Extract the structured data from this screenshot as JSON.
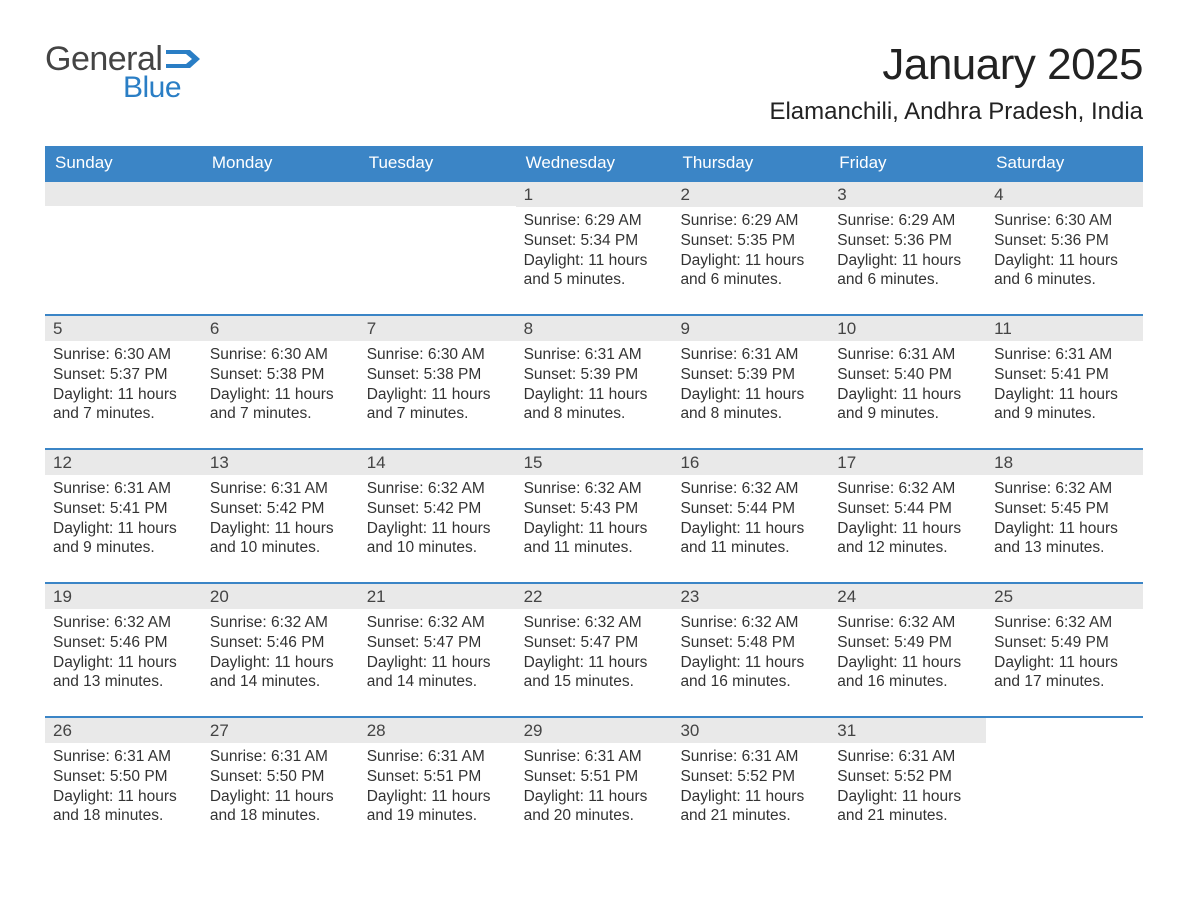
{
  "logo": {
    "word1": "General",
    "word2": "Blue",
    "word1_color": "#444444",
    "word2_color": "#2a7ec5",
    "flag_color": "#2a7ec5"
  },
  "title": "January 2025",
  "location": "Elamanchili, Andhra Pradesh, India",
  "header_bg": "#3b85c6",
  "header_text_color": "#ffffff",
  "daynum_bg": "#e9e9e9",
  "week_border_color": "#3b85c6",
  "daynames": [
    "Sunday",
    "Monday",
    "Tuesday",
    "Wednesday",
    "Thursday",
    "Friday",
    "Saturday"
  ],
  "weeks": [
    [
      {
        "blank": true
      },
      {
        "blank": true
      },
      {
        "blank": true
      },
      {
        "day": "1",
        "sunrise": "Sunrise: 6:29 AM",
        "sunset": "Sunset: 5:34 PM",
        "daylight1": "Daylight: 11 hours",
        "daylight2": "and 5 minutes."
      },
      {
        "day": "2",
        "sunrise": "Sunrise: 6:29 AM",
        "sunset": "Sunset: 5:35 PM",
        "daylight1": "Daylight: 11 hours",
        "daylight2": "and 6 minutes."
      },
      {
        "day": "3",
        "sunrise": "Sunrise: 6:29 AM",
        "sunset": "Sunset: 5:36 PM",
        "daylight1": "Daylight: 11 hours",
        "daylight2": "and 6 minutes."
      },
      {
        "day": "4",
        "sunrise": "Sunrise: 6:30 AM",
        "sunset": "Sunset: 5:36 PM",
        "daylight1": "Daylight: 11 hours",
        "daylight2": "and 6 minutes."
      }
    ],
    [
      {
        "day": "5",
        "sunrise": "Sunrise: 6:30 AM",
        "sunset": "Sunset: 5:37 PM",
        "daylight1": "Daylight: 11 hours",
        "daylight2": "and 7 minutes."
      },
      {
        "day": "6",
        "sunrise": "Sunrise: 6:30 AM",
        "sunset": "Sunset: 5:38 PM",
        "daylight1": "Daylight: 11 hours",
        "daylight2": "and 7 minutes."
      },
      {
        "day": "7",
        "sunrise": "Sunrise: 6:30 AM",
        "sunset": "Sunset: 5:38 PM",
        "daylight1": "Daylight: 11 hours",
        "daylight2": "and 7 minutes."
      },
      {
        "day": "8",
        "sunrise": "Sunrise: 6:31 AM",
        "sunset": "Sunset: 5:39 PM",
        "daylight1": "Daylight: 11 hours",
        "daylight2": "and 8 minutes."
      },
      {
        "day": "9",
        "sunrise": "Sunrise: 6:31 AM",
        "sunset": "Sunset: 5:39 PM",
        "daylight1": "Daylight: 11 hours",
        "daylight2": "and 8 minutes."
      },
      {
        "day": "10",
        "sunrise": "Sunrise: 6:31 AM",
        "sunset": "Sunset: 5:40 PM",
        "daylight1": "Daylight: 11 hours",
        "daylight2": "and 9 minutes."
      },
      {
        "day": "11",
        "sunrise": "Sunrise: 6:31 AM",
        "sunset": "Sunset: 5:41 PM",
        "daylight1": "Daylight: 11 hours",
        "daylight2": "and 9 minutes."
      }
    ],
    [
      {
        "day": "12",
        "sunrise": "Sunrise: 6:31 AM",
        "sunset": "Sunset: 5:41 PM",
        "daylight1": "Daylight: 11 hours",
        "daylight2": "and 9 minutes."
      },
      {
        "day": "13",
        "sunrise": "Sunrise: 6:31 AM",
        "sunset": "Sunset: 5:42 PM",
        "daylight1": "Daylight: 11 hours",
        "daylight2": "and 10 minutes."
      },
      {
        "day": "14",
        "sunrise": "Sunrise: 6:32 AM",
        "sunset": "Sunset: 5:42 PM",
        "daylight1": "Daylight: 11 hours",
        "daylight2": "and 10 minutes."
      },
      {
        "day": "15",
        "sunrise": "Sunrise: 6:32 AM",
        "sunset": "Sunset: 5:43 PM",
        "daylight1": "Daylight: 11 hours",
        "daylight2": "and 11 minutes."
      },
      {
        "day": "16",
        "sunrise": "Sunrise: 6:32 AM",
        "sunset": "Sunset: 5:44 PM",
        "daylight1": "Daylight: 11 hours",
        "daylight2": "and 11 minutes."
      },
      {
        "day": "17",
        "sunrise": "Sunrise: 6:32 AM",
        "sunset": "Sunset: 5:44 PM",
        "daylight1": "Daylight: 11 hours",
        "daylight2": "and 12 minutes."
      },
      {
        "day": "18",
        "sunrise": "Sunrise: 6:32 AM",
        "sunset": "Sunset: 5:45 PM",
        "daylight1": "Daylight: 11 hours",
        "daylight2": "and 13 minutes."
      }
    ],
    [
      {
        "day": "19",
        "sunrise": "Sunrise: 6:32 AM",
        "sunset": "Sunset: 5:46 PM",
        "daylight1": "Daylight: 11 hours",
        "daylight2": "and 13 minutes."
      },
      {
        "day": "20",
        "sunrise": "Sunrise: 6:32 AM",
        "sunset": "Sunset: 5:46 PM",
        "daylight1": "Daylight: 11 hours",
        "daylight2": "and 14 minutes."
      },
      {
        "day": "21",
        "sunrise": "Sunrise: 6:32 AM",
        "sunset": "Sunset: 5:47 PM",
        "daylight1": "Daylight: 11 hours",
        "daylight2": "and 14 minutes."
      },
      {
        "day": "22",
        "sunrise": "Sunrise: 6:32 AM",
        "sunset": "Sunset: 5:47 PM",
        "daylight1": "Daylight: 11 hours",
        "daylight2": "and 15 minutes."
      },
      {
        "day": "23",
        "sunrise": "Sunrise: 6:32 AM",
        "sunset": "Sunset: 5:48 PM",
        "daylight1": "Daylight: 11 hours",
        "daylight2": "and 16 minutes."
      },
      {
        "day": "24",
        "sunrise": "Sunrise: 6:32 AM",
        "sunset": "Sunset: 5:49 PM",
        "daylight1": "Daylight: 11 hours",
        "daylight2": "and 16 minutes."
      },
      {
        "day": "25",
        "sunrise": "Sunrise: 6:32 AM",
        "sunset": "Sunset: 5:49 PM",
        "daylight1": "Daylight: 11 hours",
        "daylight2": "and 17 minutes."
      }
    ],
    [
      {
        "day": "26",
        "sunrise": "Sunrise: 6:31 AM",
        "sunset": "Sunset: 5:50 PM",
        "daylight1": "Daylight: 11 hours",
        "daylight2": "and 18 minutes."
      },
      {
        "day": "27",
        "sunrise": "Sunrise: 6:31 AM",
        "sunset": "Sunset: 5:50 PM",
        "daylight1": "Daylight: 11 hours",
        "daylight2": "and 18 minutes."
      },
      {
        "day": "28",
        "sunrise": "Sunrise: 6:31 AM",
        "sunset": "Sunset: 5:51 PM",
        "daylight1": "Daylight: 11 hours",
        "daylight2": "and 19 minutes."
      },
      {
        "day": "29",
        "sunrise": "Sunrise: 6:31 AM",
        "sunset": "Sunset: 5:51 PM",
        "daylight1": "Daylight: 11 hours",
        "daylight2": "and 20 minutes."
      },
      {
        "day": "30",
        "sunrise": "Sunrise: 6:31 AM",
        "sunset": "Sunset: 5:52 PM",
        "daylight1": "Daylight: 11 hours",
        "daylight2": "and 21 minutes."
      },
      {
        "day": "31",
        "sunrise": "Sunrise: 6:31 AM",
        "sunset": "Sunset: 5:52 PM",
        "daylight1": "Daylight: 11 hours",
        "daylight2": "and 21 minutes."
      },
      {
        "blank": true,
        "nobar": true
      }
    ]
  ]
}
